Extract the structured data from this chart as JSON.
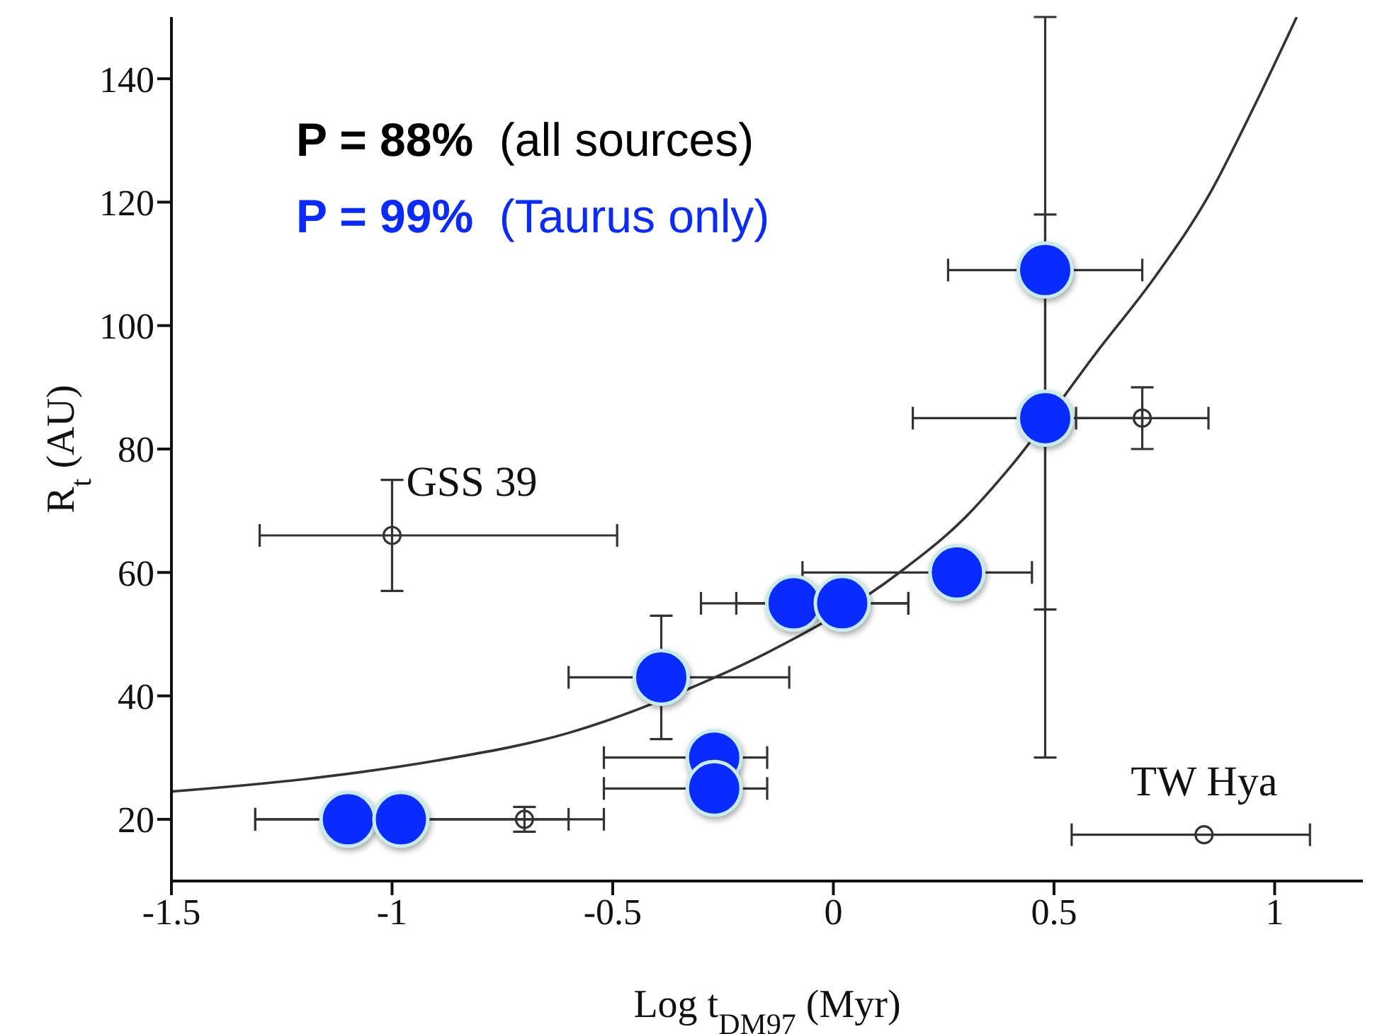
{
  "chart_data": {
    "type": "scatter",
    "xlabel": "Log t$_{DM97}$ (Myr)",
    "ylabel": "R$_{t}$ (AU)",
    "xlim": [
      -1.5,
      1.2
    ],
    "xticks": [
      -1.5,
      -1,
      -0.5,
      0,
      0.5,
      1
    ],
    "ylim": [
      10,
      150
    ],
    "yticks": [
      20,
      40,
      60,
      80,
      100,
      120,
      140
    ],
    "grid": false,
    "legend": false,
    "annotations": [
      "P = 88%  (all sources)",
      "P = 99%  (Taurus only)",
      {
        "text": "GSS 39",
        "x": -1.0,
        "y": 66
      },
      {
        "text": "TW Hya",
        "x": 0.84,
        "y": 17.5
      }
    ],
    "series": [
      {
        "type": "line",
        "color": "#333333",
        "marker": "none",
        "x": [
          -1.5,
          -1.2,
          -0.9,
          -0.6,
          -0.3,
          -0.15,
          0.15,
          0.3,
          0.4,
          0.6,
          0.73,
          0.85,
          0.95,
          1.05
        ],
        "values": [
          24.5,
          26.5,
          29.5,
          34,
          42,
          47,
          60,
          69,
          77,
          96,
          108,
          121,
          135,
          150
        ]
      },
      {
        "color": "#333333",
        "marker": "circle",
        "x": [
          -1.0,
          -0.7,
          0.7,
          0.84
        ],
        "values": [
          66,
          20,
          85,
          17.5
        ],
        "errors": [
          [
            57,
            75
          ],
          [
            18,
            22
          ],
          [
            80,
            90
          ],
          null
        ],
        "xerrors": [
          [
            -1.3,
            -0.49
          ],
          null,
          [
            0.55,
            0.85
          ],
          [
            0.54,
            1.08
          ]
        ]
      },
      {
        "color": "#0a2bff",
        "marker": "circle",
        "x": [
          0.48,
          0.48,
          0.28,
          -0.09,
          0.02,
          -0.39,
          -0.27,
          -0.27,
          -1.1,
          -0.98
        ],
        "values": [
          109,
          85,
          60,
          55,
          55,
          43,
          30,
          25,
          20,
          20
        ],
        "errors": [
          [
            54,
            118
          ],
          [
            30,
            150
          ],
          null,
          null,
          null,
          [
            33,
            53
          ],
          null,
          null,
          null,
          null
        ],
        "xerrors": [
          [
            0.26,
            0.7
          ],
          [
            0.18,
            0.7
          ],
          [
            -0.07,
            0.45
          ],
          [
            -0.22,
            0.17
          ],
          [
            -0.3,
            0.17
          ],
          [
            -0.6,
            -0.1
          ],
          [
            -0.52,
            -0.15
          ],
          [
            -0.52,
            -0.15
          ],
          [
            -1.31,
            -0.6
          ],
          [
            -1.31,
            -0.52
          ]
        ]
      }
    ]
  }
}
